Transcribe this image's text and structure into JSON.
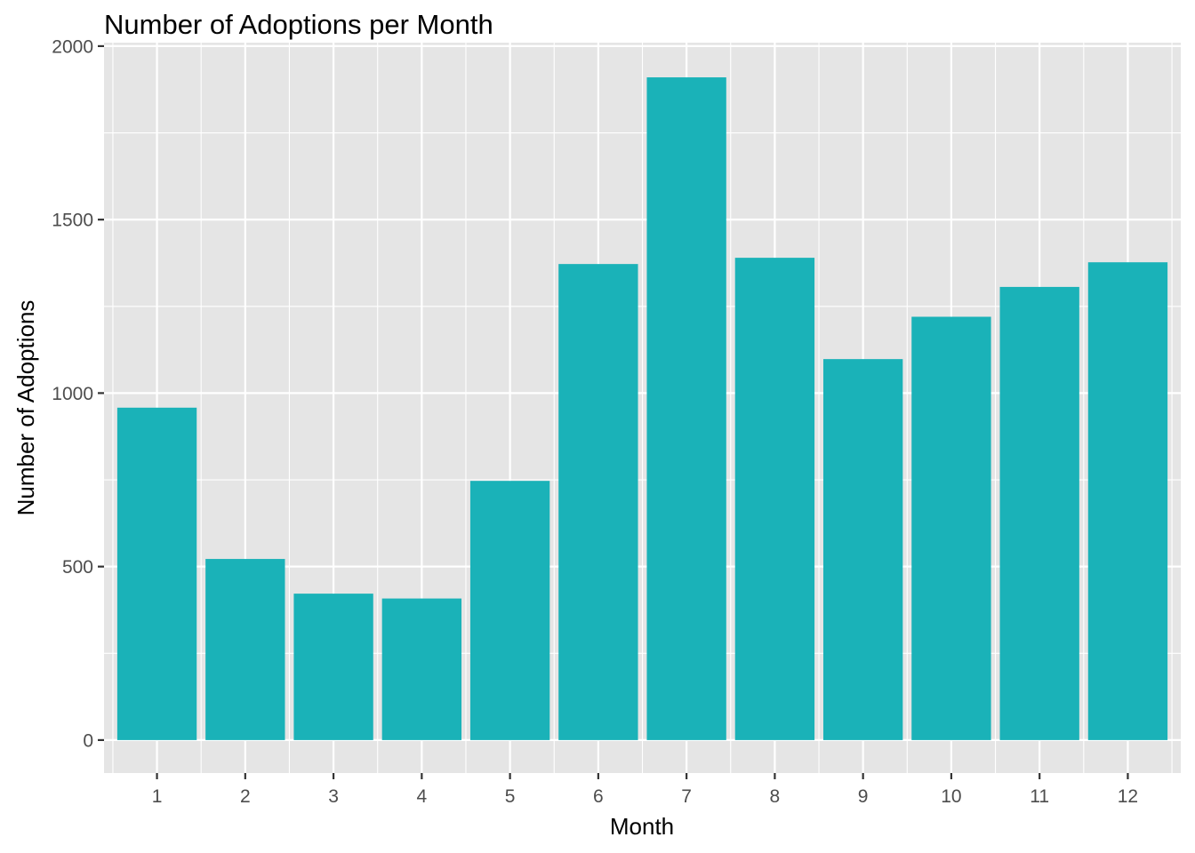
{
  "chart_data": {
    "type": "bar",
    "title": "Number of Adoptions per Month",
    "xlabel": "Month",
    "ylabel": "Number of Adoptions",
    "categories": [
      "1",
      "2",
      "3",
      "4",
      "5",
      "6",
      "7",
      "8",
      "9",
      "10",
      "11",
      "12"
    ],
    "values": [
      958,
      522,
      422,
      408,
      747,
      1372,
      1910,
      1390,
      1098,
      1220,
      1306,
      1377
    ],
    "ylim": [
      -95,
      2010
    ],
    "yticks": [
      0,
      500,
      1000,
      1500,
      2000
    ],
    "grid": true,
    "bar_color": "#1AB2B8",
    "panel_background": "#E5E5E5",
    "gridline_color": "#FFFFFF"
  }
}
